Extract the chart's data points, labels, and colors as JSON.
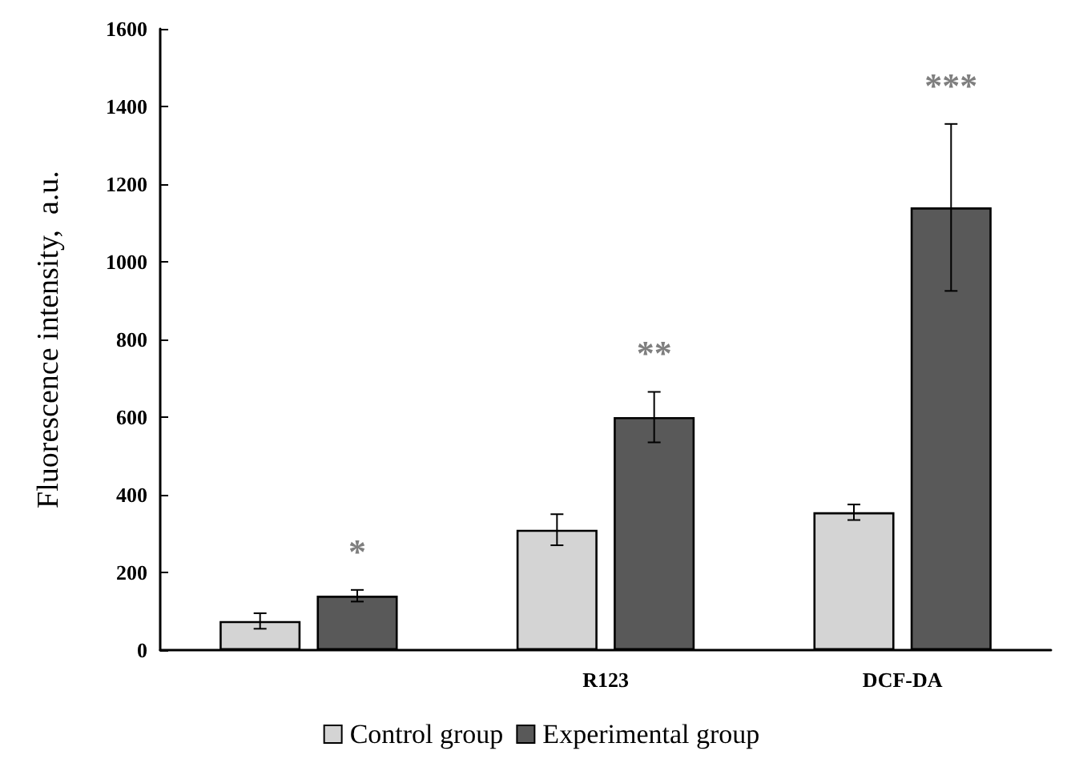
{
  "chart_data": {
    "type": "bar",
    "ylabel": "Fluorescence intensity,  a.u.",
    "categories": [
      null,
      "R123",
      "DCF-DA"
    ],
    "series": [
      {
        "name": "Control group",
        "color": "#d4d4d4",
        "values": [
          75,
          310,
          355
        ],
        "errors": [
          20,
          40,
          20
        ]
      },
      {
        "name": "Experimental group",
        "color": "#595959",
        "values": [
          140,
          600,
          1140
        ],
        "errors": [
          15,
          65,
          215
        ]
      }
    ],
    "ylim": [
      0,
      1600
    ],
    "yticks": [
      0,
      200,
      400,
      600,
      800,
      1000,
      1200,
      1400,
      1600
    ],
    "grid": false,
    "legend": "bottom",
    "annotations": [
      "*",
      "**",
      "***"
    ]
  }
}
